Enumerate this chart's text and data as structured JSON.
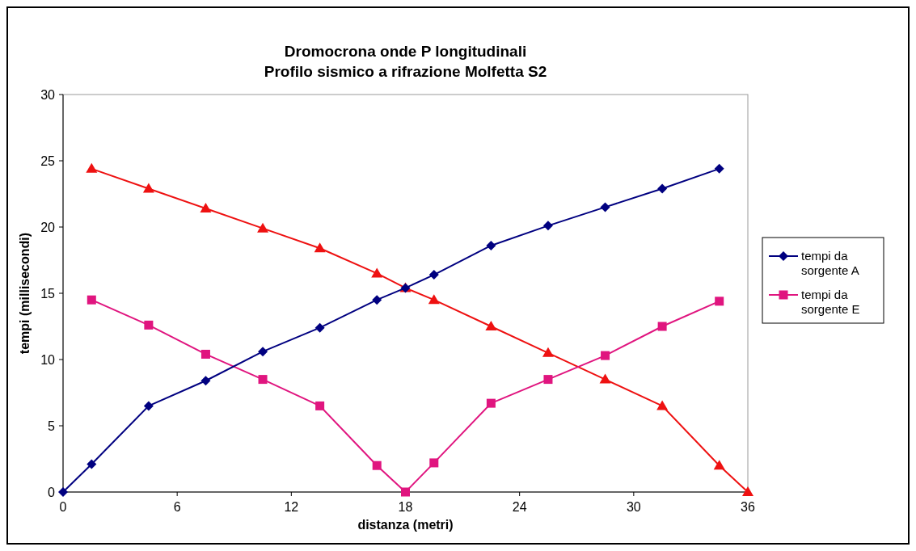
{
  "chart_data": {
    "type": "line",
    "title": "Dromocrona onde P longitudinali\nProfilo sismico a rifrazione Molfetta S2",
    "xlabel": "distanza (metri)",
    "ylabel": "tempi (millisecondi)",
    "xlim": [
      0,
      36
    ],
    "xticks": [
      0,
      6,
      12,
      18,
      24,
      30,
      36
    ],
    "ylim": [
      0,
      30
    ],
    "yticks": [
      0,
      5,
      10,
      15,
      20,
      25,
      30
    ],
    "grid": false,
    "legend": "right",
    "series": [
      {
        "name": "tempi da sorgente A",
        "color": "#000080",
        "marker": "diamond",
        "x": [
          0,
          1.5,
          4.5,
          7.5,
          10.5,
          13.5,
          16.5,
          18,
          19.5,
          22.5,
          25.5,
          28.5,
          31.5,
          34.5
        ],
        "values": [
          0,
          2.1,
          6.5,
          8.4,
          10.6,
          12.4,
          14.5,
          15.4,
          16.4,
          18.6,
          20.1,
          21.5,
          22.9,
          24.4
        ]
      },
      {
        "name": "tempi da sorgente E",
        "color": "#e0157f",
        "marker": "square",
        "x": [
          1.5,
          4.5,
          7.5,
          10.5,
          13.5,
          16.5,
          18,
          19.5,
          22.5,
          25.5,
          28.5,
          31.5,
          34.5
        ],
        "values": [
          14.5,
          12.6,
          10.4,
          8.5,
          6.5,
          2,
          0,
          2.2,
          6.7,
          8.5,
          10.3,
          12.5,
          14.4
        ]
      },
      {
        "color": "#ee1111",
        "marker": "triangle",
        "x": [
          1.5,
          4.5,
          7.5,
          10.5,
          13.5,
          16.5,
          18,
          19.5,
          22.5,
          25.5,
          28.5,
          31.5,
          34.5,
          36
        ],
        "values": [
          24.4,
          22.9,
          21.4,
          19.9,
          18.4,
          16.5,
          15.4,
          14.5,
          12.5,
          10.5,
          8.5,
          6.5,
          2,
          0
        ]
      }
    ]
  }
}
